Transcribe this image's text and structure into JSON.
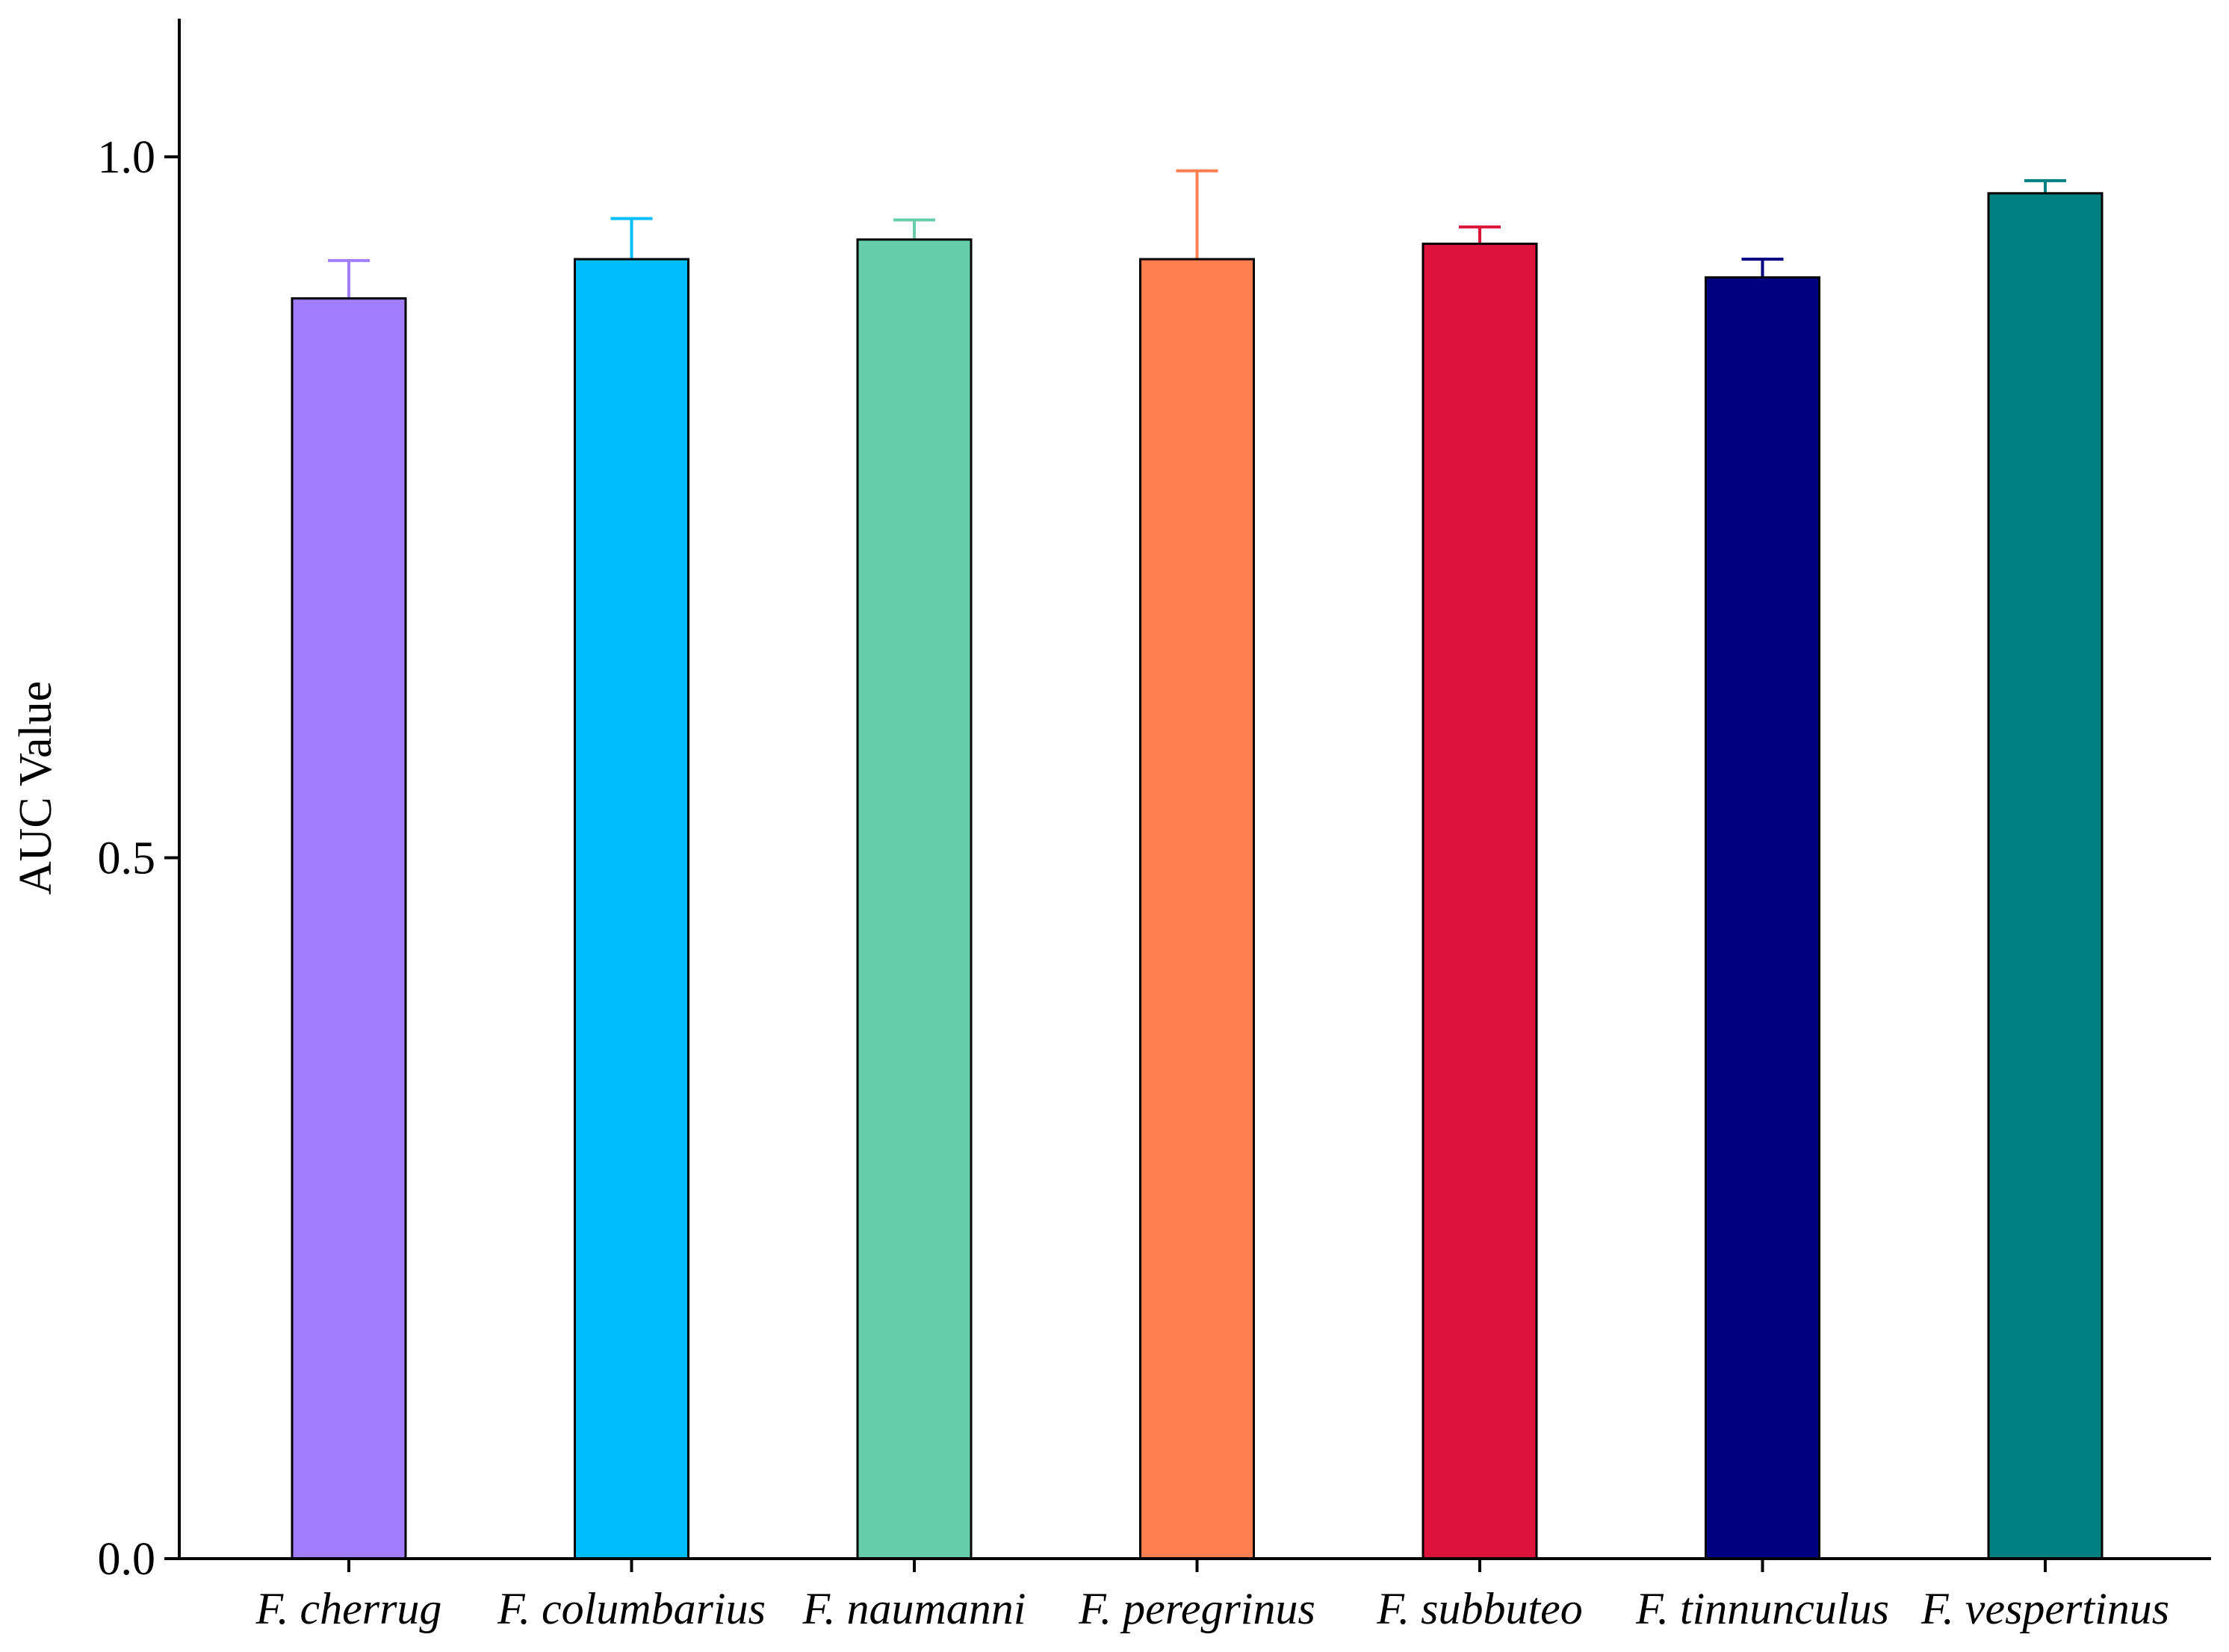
{
  "chart_data": {
    "type": "bar",
    "title": "",
    "xlabel": "",
    "ylabel": "AUC Value",
    "ylim": [
      0,
      1.1
    ],
    "yticks": [
      0.0,
      0.5,
      1.0
    ],
    "ytick_labels": [
      "0.0",
      "0.5",
      "1.0"
    ],
    "grid": false,
    "legend": "none",
    "categories": [
      "F. cherrug",
      "F. columbarius",
      "F. naumanni",
      "F. peregrinus",
      "F. subbuteo",
      "F. tinnunculus",
      "F. vespertinus"
    ],
    "values": [
      0.899,
      0.927,
      0.941,
      0.927,
      0.938,
      0.914,
      0.974
    ],
    "error_upper": [
      0.027,
      0.029,
      0.014,
      0.063,
      0.012,
      0.013,
      0.009
    ],
    "colors": [
      "#A07EFF",
      "#00BFFF",
      "#66CDAA",
      "#FF7F50",
      "#DC143C",
      "#000080",
      "#008080"
    ]
  }
}
